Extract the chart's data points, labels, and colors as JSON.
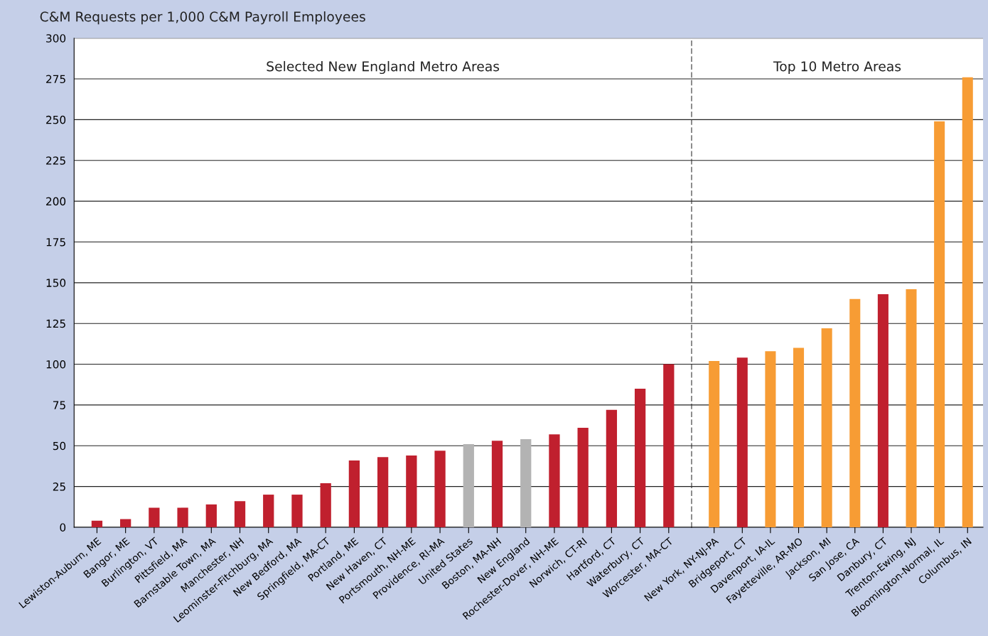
{
  "chart_data": [
    {
      "type": "bar",
      "ylabel": "C&M Requests per 1,000 C&M Payroll Employees",
      "title": "Selected New England Metro Areas",
      "categories": [
        "Lewiston-Auburn, ME",
        "Bangor, ME",
        "Burlington, VT",
        "Pittsfield, MA",
        "Barnstable Town, MA",
        "Manchester, NH",
        "Leominster-Fitchburg, MA",
        "New Bedford, MA",
        "Springfield, MA-CT",
        "Portland, ME",
        "New Haven, CT",
        "Portsmouth, NH-ME",
        "Providence, RI-MA",
        "United States",
        "Boston, MA-NH",
        "New England",
        "Rochester-Dover, NH-ME",
        "Norwich, CT-RI",
        "Hartford, CT",
        "Waterbury, CT",
        "Worcester, MA-CT"
      ],
      "values": [
        4,
        5,
        12,
        12,
        14,
        16,
        20,
        20,
        27,
        41,
        43,
        44,
        47,
        51,
        53,
        54,
        57,
        61,
        72,
        85,
        100
      ],
      "colors": [
        "#c0202e",
        "#c0202e",
        "#c0202e",
        "#c0202e",
        "#c0202e",
        "#c0202e",
        "#c0202e",
        "#c0202e",
        "#c0202e",
        "#c0202e",
        "#c0202e",
        "#c0202e",
        "#c0202e",
        "#b3b3b3",
        "#c0202e",
        "#b3b3b3",
        "#c0202e",
        "#c0202e",
        "#c0202e",
        "#c0202e",
        "#c0202e"
      ],
      "ylim": [
        0,
        300
      ],
      "yticks": [
        0,
        25,
        50,
        75,
        100,
        125,
        150,
        175,
        200,
        225,
        250,
        275,
        300
      ],
      "grid": "y"
    },
    {
      "type": "bar",
      "title": "Top 10 Metro Areas",
      "categories": [
        "New York, NY-NJ-PA",
        "Bridgeport, CT",
        "Davenport, IA-IL",
        "Fayetteville, AR-MO",
        "Jackson, MI",
        "San Jose, CA",
        "Danbury, CT",
        "Trenton-Ewing, NJ",
        "Bloomington-Normal, IL",
        "Columbus, IN"
      ],
      "values": [
        102,
        104,
        108,
        110,
        122,
        140,
        143,
        146,
        249,
        276
      ],
      "colors": [
        "#f79c34",
        "#c0202e",
        "#f79c34",
        "#f79c34",
        "#f79c34",
        "#f79c34",
        "#c0202e",
        "#f79c34",
        "#f79c34",
        "#f79c34"
      ],
      "ylim": [
        0,
        300
      ],
      "yticks": [
        0,
        25,
        50,
        75,
        100,
        125,
        150,
        175,
        200,
        225,
        250,
        275,
        300
      ],
      "grid": "y",
      "tick_labels": "x"
    }
  ]
}
